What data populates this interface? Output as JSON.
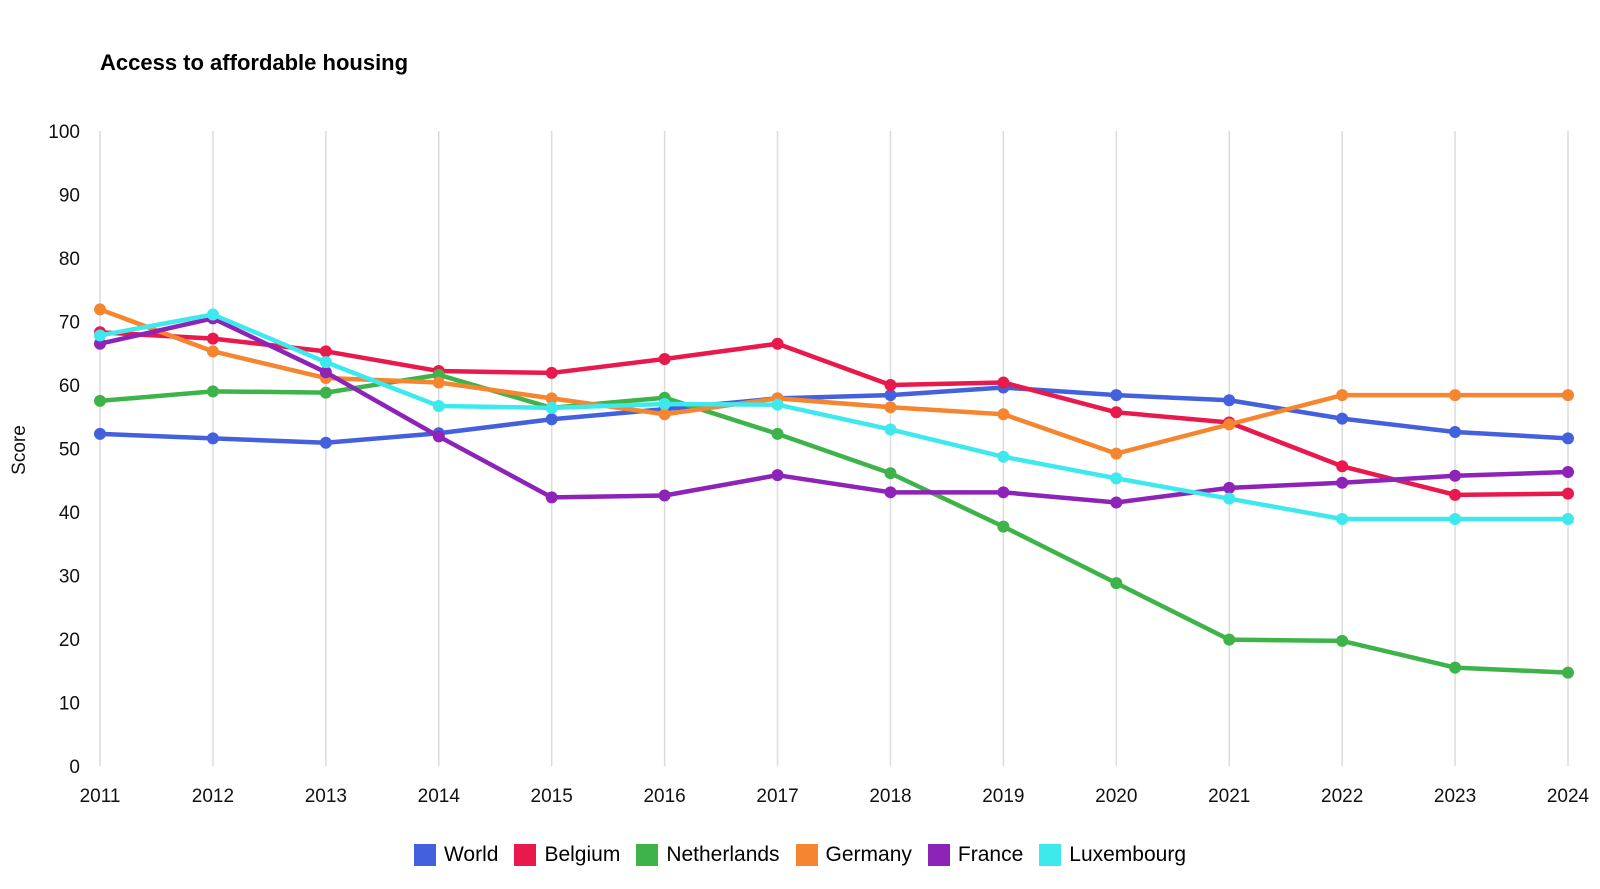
{
  "chart_data": {
    "type": "line",
    "title": "Access to affordable housing",
    "xlabel": "",
    "ylabel": "Score",
    "ylim": [
      0,
      100
    ],
    "yticks": [
      0,
      10,
      20,
      30,
      40,
      50,
      60,
      70,
      80,
      90,
      100
    ],
    "grid": "vertical",
    "legend_position": "bottom",
    "x": [
      "2011",
      "2012",
      "2013",
      "2014",
      "2015",
      "2016",
      "2017",
      "2018",
      "2019",
      "2020",
      "2021",
      "2022",
      "2023",
      "2024"
    ],
    "series": [
      {
        "name": "World",
        "color": "#4361dc",
        "values": [
          52.3,
          51.6,
          50.9,
          52.4,
          54.6,
          56.2,
          57.9,
          58.4,
          59.6,
          58.4,
          57.6,
          54.7,
          52.6,
          51.6
        ]
      },
      {
        "name": "Belgium",
        "color": "#e8194d",
        "values": [
          68.3,
          67.3,
          65.3,
          62.2,
          61.9,
          64.1,
          66.5,
          60.0,
          60.4,
          55.7,
          54.1,
          47.2,
          42.7,
          42.9
        ]
      },
      {
        "name": "Netherlands",
        "color": "#3db34a",
        "values": [
          57.5,
          59.0,
          58.8,
          61.6,
          56.4,
          58.0,
          52.3,
          46.1,
          37.7,
          28.8,
          19.9,
          19.7,
          15.5,
          14.7
        ]
      },
      {
        "name": "Germany",
        "color": "#f5862f",
        "values": [
          71.9,
          65.3,
          61.1,
          60.4,
          57.9,
          55.4,
          57.9,
          56.5,
          55.4,
          49.2,
          53.8,
          58.4,
          58.4,
          58.4
        ]
      },
      {
        "name": "France",
        "color": "#8e23b8",
        "values": [
          66.5,
          70.5,
          62.0,
          51.9,
          42.3,
          42.6,
          45.8,
          43.1,
          43.1,
          41.5,
          43.8,
          44.6,
          45.7,
          46.3
        ]
      },
      {
        "name": "Luxembourg",
        "color": "#3ee9ee",
        "values": [
          67.8,
          71.1,
          63.6,
          56.7,
          56.4,
          57.0,
          56.9,
          53.0,
          48.7,
          45.3,
          42.1,
          38.9,
          38.9,
          38.9
        ]
      }
    ]
  }
}
